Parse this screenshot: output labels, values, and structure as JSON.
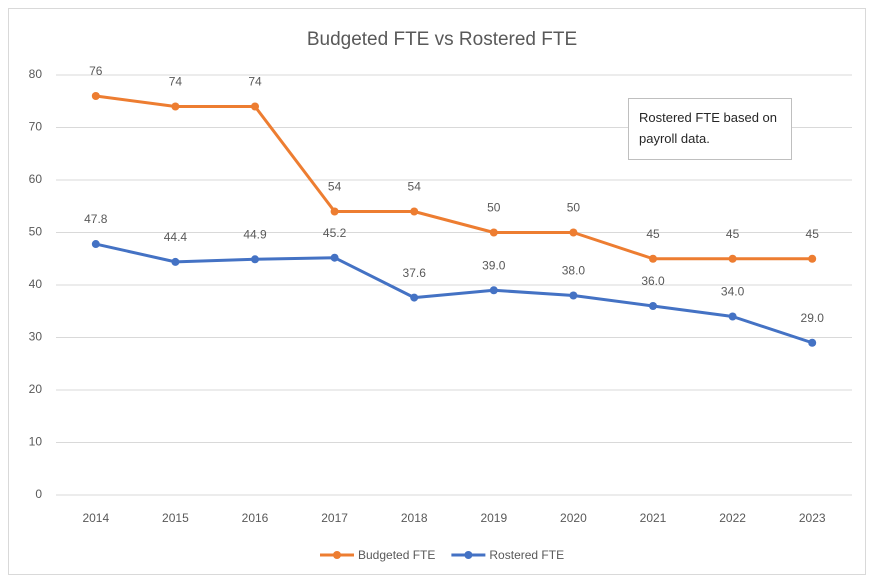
{
  "chart_data": {
    "type": "line",
    "title": "Budgeted FTE vs Rostered FTE",
    "categories": [
      "2014",
      "2015",
      "2016",
      "2017",
      "2018",
      "2019",
      "2020",
      "2021",
      "2022",
      "2023"
    ],
    "series": [
      {
        "name": "Budgeted FTE",
        "color": "#ed7d31",
        "values": [
          76,
          74,
          74,
          54,
          54,
          50,
          50,
          45,
          45,
          45
        ]
      },
      {
        "name": "Rostered FTE",
        "color": "#4472c4",
        "values": [
          47.8,
          44.4,
          44.9,
          45.2,
          37.6,
          39.0,
          38.0,
          36.0,
          34.0,
          29.0
        ],
        "value_labels": [
          "47.8",
          "44.4",
          "44.9",
          "45.2",
          "37.6",
          "39.0",
          "38.0",
          "36.0",
          "34.0",
          "29.0"
        ]
      }
    ],
    "ylim": [
      0,
      80
    ],
    "yticks": [
      0,
      10,
      20,
      30,
      40,
      50,
      60,
      70,
      80
    ],
    "grid": true,
    "legend": "bottom",
    "annotation": "Rostered FTE based on payroll data."
  }
}
